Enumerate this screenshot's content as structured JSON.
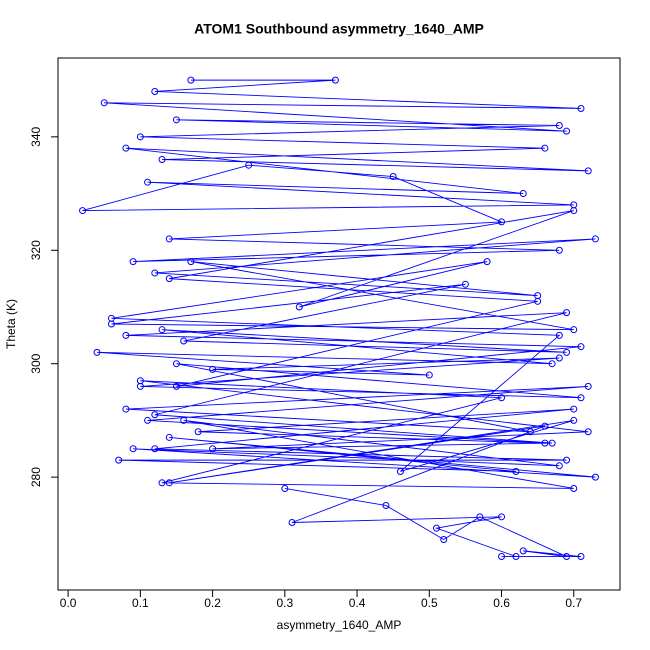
{
  "chart_data": {
    "type": "line",
    "title": "ATOM1 Southbound asymmetry_1640_AMP",
    "x_label": "asymmetry_1640_AMP",
    "y_label": "Theta (K)",
    "color": "#0000ff",
    "marker": "circle",
    "x": [
      0.17,
      0.37,
      0.12,
      0.71,
      0.05,
      0.69,
      0.15,
      0.68,
      0.1,
      0.66,
      0.13,
      0.72,
      0.08,
      0.63,
      0.11,
      0.7,
      0.02,
      0.25,
      0.45,
      0.6,
      0.14,
      0.68,
      0.09,
      0.73,
      0.12,
      0.65,
      0.17,
      0.7,
      0.06,
      0.55,
      0.16,
      0.69,
      0.13,
      0.67,
      0.04,
      0.5,
      0.2,
      0.68,
      0.1,
      0.71,
      0.15,
      0.64,
      0.08,
      0.72,
      0.11,
      0.66,
      0.18,
      0.7,
      0.12,
      0.69,
      0.07,
      0.62,
      0.14,
      0.73,
      0.09,
      0.68,
      0.16,
      0.7,
      0.13,
      0.6,
      0.1,
      0.72,
      0.2,
      0.67,
      0.12,
      0.69,
      0.08,
      0.71,
      0.15,
      0.65,
      0.14,
      0.7,
      0.32,
      0.58,
      0.06,
      0.68,
      0.46,
      0.7,
      0.14,
      0.66,
      0.31,
      0.6,
      0.51,
      0.62,
      0.6,
      0.71,
      0.63,
      0.69,
      0.57,
      0.52,
      0.44,
      0.3
    ],
    "values": [
      350,
      350,
      348,
      345,
      346,
      341,
      343,
      342,
      340,
      338,
      336,
      334,
      338,
      330,
      332,
      328,
      327,
      335,
      333,
      325,
      322,
      320,
      318,
      322,
      316,
      312,
      318,
      306,
      307,
      314,
      304,
      302,
      306,
      300,
      302,
      298,
      299,
      301,
      296,
      294,
      300,
      288,
      292,
      296,
      290,
      286,
      288,
      292,
      285,
      283,
      283,
      281,
      287,
      280,
      285,
      282,
      290,
      278,
      279,
      294,
      297,
      288,
      285,
      286,
      291,
      309,
      305,
      303,
      296,
      311,
      315,
      327,
      310,
      318,
      308,
      305,
      281,
      290,
      279,
      289,
      272,
      273,
      271,
      266,
      266,
      266,
      267,
      266,
      273,
      269,
      275,
      278
    ],
    "xlim": [
      -0.014,
      0.764
    ],
    "ylim": [
      260.1,
      353.9
    ],
    "xticks": [
      {
        "value": 0,
        "label": "0.0"
      },
      0.1,
      0.2,
      0.3,
      0.4,
      0.5,
      0.6,
      0.7
    ],
    "yticks": [
      280,
      300,
      320,
      340
    ],
    "grid": false
  }
}
